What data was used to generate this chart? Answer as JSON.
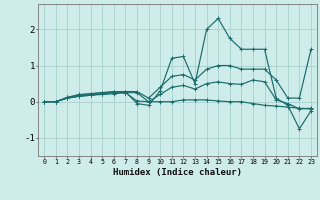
{
  "xlabel": "Humidex (Indice chaleur)",
  "ylabel": "",
  "xlim": [
    -0.5,
    23.5
  ],
  "ylim": [
    -1.5,
    2.7
  ],
  "bg_color": "#ceecea",
  "grid_color": "#aed4d2",
  "line_color": "#1a6b6b",
  "lines": [
    {
      "x": [
        0,
        1,
        2,
        3,
        4,
        5,
        6,
        7,
        8,
        9,
        10,
        11,
        12,
        13,
        14,
        15,
        16,
        17,
        18,
        19,
        20,
        21,
        22,
        23
      ],
      "y": [
        0,
        0,
        0.1,
        0.15,
        0.18,
        0.2,
        0.22,
        0.25,
        0.02,
        0.0,
        0.0,
        0.0,
        0.05,
        0.05,
        0.05,
        0.02,
        0.0,
        0.0,
        -0.05,
        -0.1,
        -0.12,
        -0.15,
        -0.18,
        -0.2
      ]
    },
    {
      "x": [
        0,
        1,
        2,
        3,
        4,
        5,
        6,
        7,
        8,
        9,
        10,
        11,
        12,
        13,
        14,
        15,
        16,
        17,
        18,
        19,
        20,
        21,
        22,
        23
      ],
      "y": [
        0,
        0,
        0.12,
        0.18,
        0.22,
        0.25,
        0.28,
        0.28,
        -0.05,
        -0.1,
        0.3,
        1.2,
        1.25,
        0.5,
        2.0,
        2.3,
        1.75,
        1.45,
        1.45,
        1.45,
        0.1,
        -0.1,
        -0.75,
        -0.25
      ]
    },
    {
      "x": [
        0,
        1,
        2,
        3,
        4,
        5,
        6,
        7,
        8,
        9,
        10,
        11,
        12,
        13,
        14,
        15,
        16,
        17,
        18,
        19,
        20,
        21,
        22,
        23
      ],
      "y": [
        0,
        0,
        0.12,
        0.2,
        0.22,
        0.25,
        0.27,
        0.28,
        0.28,
        0.1,
        0.4,
        0.7,
        0.75,
        0.6,
        0.9,
        1.0,
        1.0,
        0.9,
        0.9,
        0.9,
        0.6,
        0.1,
        0.1,
        1.45
      ]
    },
    {
      "x": [
        0,
        1,
        2,
        3,
        4,
        5,
        6,
        7,
        8,
        9,
        10,
        11,
        12,
        13,
        14,
        15,
        16,
        17,
        18,
        19,
        20,
        21,
        22,
        23
      ],
      "y": [
        0,
        0,
        0.1,
        0.15,
        0.18,
        0.22,
        0.25,
        0.25,
        0.25,
        0.0,
        0.2,
        0.4,
        0.45,
        0.35,
        0.5,
        0.55,
        0.5,
        0.48,
        0.6,
        0.55,
        0.05,
        -0.05,
        -0.2,
        -0.18
      ]
    }
  ],
  "yticks": [
    -1,
    0,
    1,
    2
  ],
  "xticks": [
    0,
    1,
    2,
    3,
    4,
    5,
    6,
    7,
    8,
    9,
    10,
    11,
    12,
    13,
    14,
    15,
    16,
    17,
    18,
    19,
    20,
    21,
    22,
    23
  ],
  "marker": "+"
}
